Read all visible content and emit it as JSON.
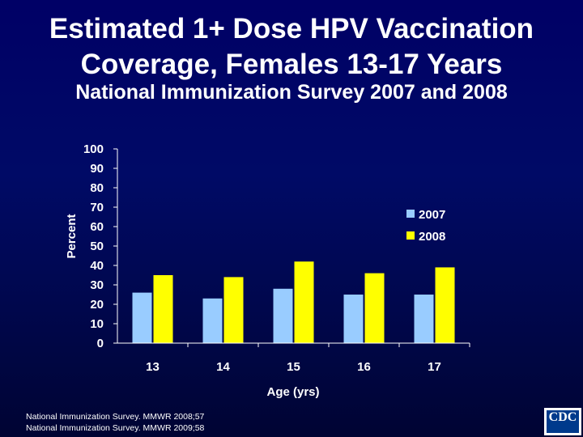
{
  "title": "Estimated 1+ Dose HPV Vaccination Coverage, Females 13-17 Years",
  "subtitle": "National Immunization Survey 2007 and 2008",
  "colors": {
    "background": "#000066",
    "series_2007": "#99ccff",
    "series_2008": "#ffff00",
    "text": "#ffffff"
  },
  "chart_data": {
    "type": "bar",
    "categories": [
      "13",
      "14",
      "15",
      "16",
      "17"
    ],
    "series": [
      {
        "name": "2007",
        "values": [
          26,
          23,
          28,
          25,
          25
        ]
      },
      {
        "name": "2008",
        "values": [
          35,
          34,
          42,
          36,
          39
        ]
      }
    ],
    "xlabel": "Age (yrs)",
    "ylabel": "Percent",
    "ylim": [
      0,
      100
    ],
    "yticks": [
      "0",
      "10",
      "20",
      "30",
      "40",
      "50",
      "60",
      "70",
      "80",
      "90",
      "100"
    ],
    "grid": false,
    "legend_position": "right"
  },
  "sources": [
    "National Immunization Survey.  MMWR 2008;57",
    "National Immunization Survey. MMWR 2009;58"
  ],
  "logo": {
    "text": "CDC"
  }
}
